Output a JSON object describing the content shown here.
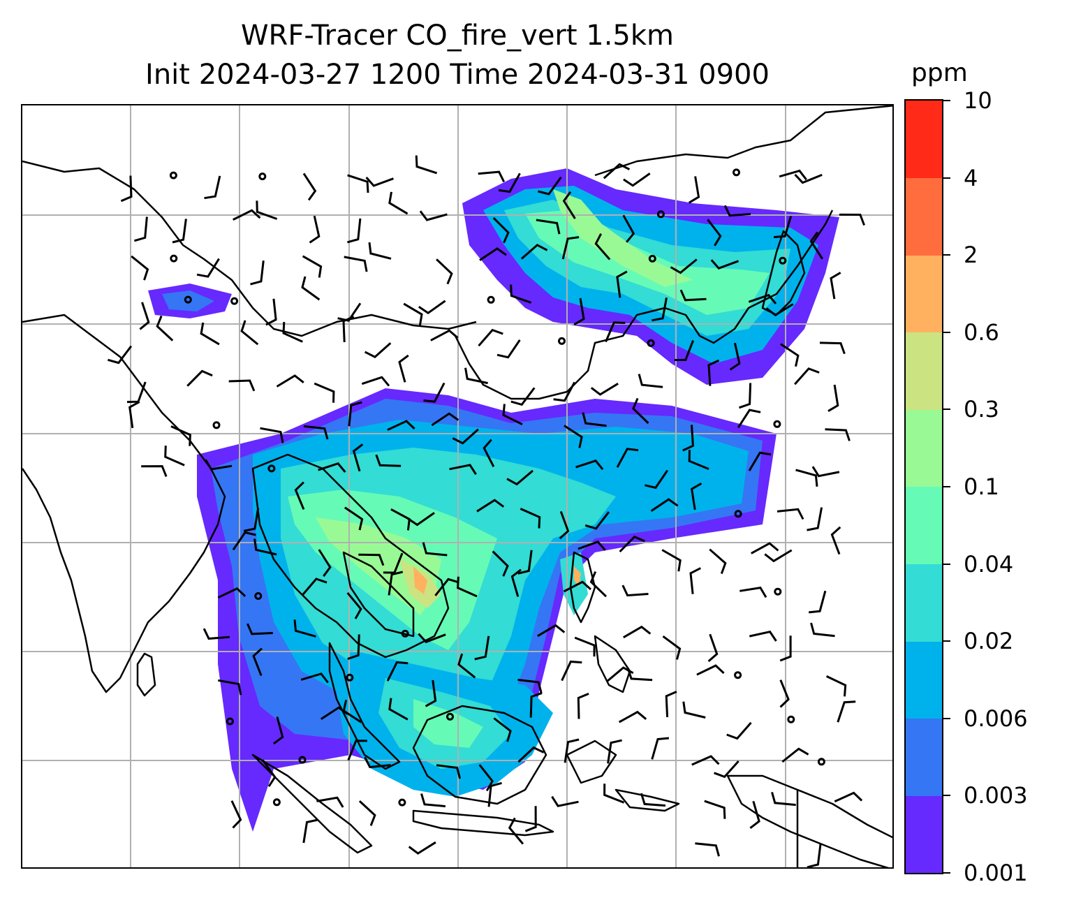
{
  "title": {
    "line1": "WRF-Tracer CO_fire_vert 1.5km",
    "line2": "Init 2024-03-27 1200 Time 2024-03-31 0900"
  },
  "colorbar": {
    "unit": "ppm",
    "levels": [
      "0.001",
      "0.003",
      "0.006",
      "0.02",
      "0.04",
      "0.1",
      "0.3",
      "0.6",
      "2",
      "4",
      "10"
    ],
    "colors": [
      "#6629fe",
      "#3576f4",
      "#00b2ec",
      "#33dcd4",
      "#66fab7",
      "#99fa95",
      "#cce382",
      "#ffb15f",
      "#ff6c3d",
      "#ff2b18"
    ]
  },
  "map": {
    "field": "CO_fire_vert",
    "level": "1.5km",
    "gridlines": true,
    "coastline_color": "#000000",
    "grid_color": "#b0b0b0",
    "wind_barbs": "black"
  }
}
